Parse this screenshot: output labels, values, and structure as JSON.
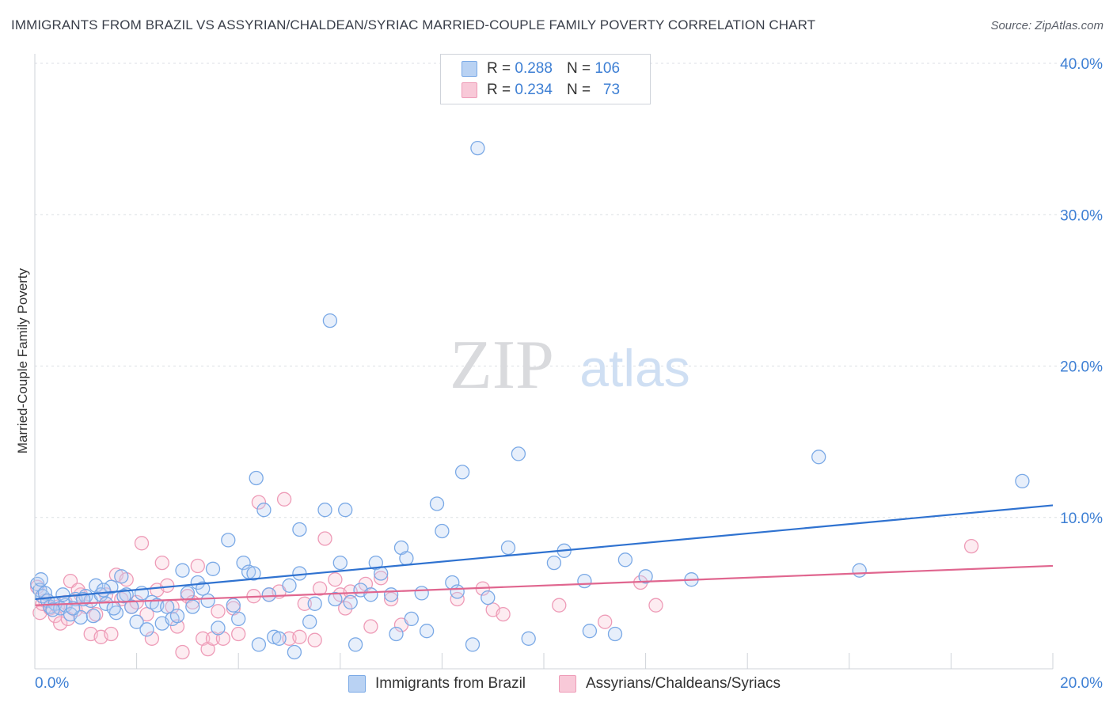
{
  "header": {
    "title": "IMMIGRANTS FROM BRAZIL VS ASSYRIAN/CHALDEAN/SYRIAC MARRIED-COUPLE FAMILY POVERTY CORRELATION CHART",
    "source": "Source: ZipAtlas.com"
  },
  "watermark": {
    "zip": "ZIP",
    "atlas": "atlas"
  },
  "legend": {
    "rows": [
      {
        "r_label": "R =",
        "r_value": "0.288",
        "n_label": "N =",
        "n_value": "106"
      },
      {
        "r_label": "R =",
        "r_value": "0.234",
        "n_label": "N =",
        "n_value": "73"
      }
    ]
  },
  "chart_data": {
    "type": "scatter",
    "title": "IMMIGRANTS FROM BRAZIL VS ASSYRIAN/CHALDEAN/SYRIAC MARRIED-COUPLE FAMILY POVERTY CORRELATION CHART",
    "xlabel": "",
    "ylabel": "Married-Couple Family Poverty",
    "xlim": [
      0,
      20
    ],
    "ylim": [
      0,
      40
    ],
    "x_tick_labels": [
      "0.0%",
      "20.0%"
    ],
    "y_tick_labels": [
      "10.0%",
      "20.0%",
      "30.0%",
      "40.0%"
    ],
    "y_ticks": [
      10,
      20,
      30,
      40
    ],
    "grid": true,
    "legend_position": "top-center",
    "series": [
      {
        "name": "Immigrants from Brazil",
        "color": "#7aa9e6",
        "fill": "#b9d2f3",
        "line_color": "#2f72d0",
        "R": 0.288,
        "N": 106,
        "trend": {
          "x": [
            0,
            20
          ],
          "y": [
            4.6,
            10.8
          ]
        },
        "points": [
          [
            0.05,
            5.6
          ],
          [
            0.1,
            5.2
          ],
          [
            0.15,
            4.8
          ],
          [
            0.2,
            5.0
          ],
          [
            0.25,
            4.5
          ],
          [
            0.3,
            4.1
          ],
          [
            0.4,
            4.3
          ],
          [
            0.5,
            4.0
          ],
          [
            0.6,
            4.2
          ],
          [
            0.7,
            3.6
          ],
          [
            0.8,
            4.6
          ],
          [
            0.9,
            3.4
          ],
          [
            1.0,
            4.8
          ],
          [
            1.1,
            4.5
          ],
          [
            1.2,
            5.5
          ],
          [
            1.3,
            4.9
          ],
          [
            1.4,
            4.3
          ],
          [
            1.5,
            5.4
          ],
          [
            1.6,
            3.7
          ],
          [
            1.7,
            6.1
          ],
          [
            1.8,
            4.9
          ],
          [
            1.9,
            4.1
          ],
          [
            2.0,
            3.1
          ],
          [
            2.1,
            5.0
          ],
          [
            2.2,
            2.6
          ],
          [
            2.3,
            4.4
          ],
          [
            2.4,
            4.2
          ],
          [
            2.5,
            3.0
          ],
          [
            2.6,
            4.1
          ],
          [
            2.7,
            3.3
          ],
          [
            2.8,
            3.5
          ],
          [
            2.9,
            6.5
          ],
          [
            3.0,
            5.0
          ],
          [
            3.1,
            4.1
          ],
          [
            3.2,
            5.7
          ],
          [
            3.3,
            5.3
          ],
          [
            3.4,
            4.5
          ],
          [
            3.5,
            6.6
          ],
          [
            3.6,
            2.7
          ],
          [
            3.8,
            8.5
          ],
          [
            3.9,
            4.2
          ],
          [
            4.0,
            3.3
          ],
          [
            4.1,
            7.0
          ],
          [
            4.2,
            6.4
          ],
          [
            4.3,
            6.3
          ],
          [
            4.35,
            12.6
          ],
          [
            4.4,
            1.6
          ],
          [
            4.5,
            10.5
          ],
          [
            4.6,
            4.9
          ],
          [
            4.7,
            2.1
          ],
          [
            4.8,
            2.0
          ],
          [
            5.0,
            5.5
          ],
          [
            5.1,
            1.1
          ],
          [
            5.2,
            6.3
          ],
          [
            5.2,
            9.2
          ],
          [
            5.4,
            3.1
          ],
          [
            5.5,
            4.3
          ],
          [
            5.7,
            10.5
          ],
          [
            5.8,
            23.0
          ],
          [
            5.9,
            4.6
          ],
          [
            6.0,
            7.0
          ],
          [
            6.1,
            10.5
          ],
          [
            6.2,
            4.4
          ],
          [
            6.3,
            1.6
          ],
          [
            6.4,
            5.2
          ],
          [
            6.6,
            4.9
          ],
          [
            6.7,
            7.0
          ],
          [
            6.8,
            6.3
          ],
          [
            7.0,
            4.9
          ],
          [
            7.1,
            2.3
          ],
          [
            7.2,
            8.0
          ],
          [
            7.3,
            7.3
          ],
          [
            7.4,
            3.3
          ],
          [
            7.6,
            5.0
          ],
          [
            7.7,
            2.5
          ],
          [
            7.9,
            10.9
          ],
          [
            8.0,
            9.1
          ],
          [
            8.2,
            5.7
          ],
          [
            8.3,
            5.1
          ],
          [
            8.4,
            13.0
          ],
          [
            8.6,
            1.6
          ],
          [
            8.7,
            34.4
          ],
          [
            8.9,
            4.7
          ],
          [
            9.3,
            8.0
          ],
          [
            9.5,
            14.2
          ],
          [
            9.7,
            2.0
          ],
          [
            10.2,
            7.0
          ],
          [
            10.4,
            7.8
          ],
          [
            10.8,
            5.8
          ],
          [
            10.9,
            2.5
          ],
          [
            11.4,
            2.3
          ],
          [
            11.6,
            7.2
          ],
          [
            12.0,
            6.1
          ],
          [
            12.9,
            5.9
          ],
          [
            15.4,
            14.0
          ],
          [
            16.2,
            6.5
          ],
          [
            19.4,
            12.4
          ],
          [
            0.12,
            5.9
          ],
          [
            0.35,
            3.9
          ],
          [
            0.55,
            4.9
          ],
          [
            0.75,
            4.0
          ],
          [
            0.95,
            4.6
          ],
          [
            1.15,
            3.5
          ],
          [
            1.35,
            5.2
          ],
          [
            1.55,
            4.0
          ],
          [
            1.75,
            4.8
          ]
        ]
      },
      {
        "name": "Assyrians/Chaldeans/Syriacs",
        "color": "#ee9bb7",
        "fill": "#f8c9d8",
        "line_color": "#e0668f",
        "R": 0.234,
        "N": 73,
        "trend": {
          "x": [
            0,
            20
          ],
          "y": [
            4.2,
            6.8
          ]
        },
        "points": [
          [
            0.05,
            5.4
          ],
          [
            0.1,
            3.7
          ],
          [
            0.2,
            4.5
          ],
          [
            0.3,
            4.0
          ],
          [
            0.4,
            3.5
          ],
          [
            0.5,
            3.0
          ],
          [
            0.6,
            4.4
          ],
          [
            0.7,
            5.8
          ],
          [
            0.8,
            3.9
          ],
          [
            0.9,
            4.9
          ],
          [
            1.0,
            4.1
          ],
          [
            1.1,
            2.3
          ],
          [
            1.2,
            3.6
          ],
          [
            1.3,
            2.1
          ],
          [
            1.4,
            4.9
          ],
          [
            1.5,
            2.3
          ],
          [
            1.6,
            6.2
          ],
          [
            1.7,
            4.6
          ],
          [
            1.8,
            5.9
          ],
          [
            1.9,
            4.1
          ],
          [
            2.0,
            4.4
          ],
          [
            2.1,
            8.3
          ],
          [
            2.2,
            3.6
          ],
          [
            2.3,
            2.0
          ],
          [
            2.4,
            5.2
          ],
          [
            2.5,
            7.0
          ],
          [
            2.6,
            5.5
          ],
          [
            2.7,
            4.1
          ],
          [
            2.8,
            2.8
          ],
          [
            2.9,
            1.1
          ],
          [
            3.0,
            4.8
          ],
          [
            3.1,
            4.4
          ],
          [
            3.2,
            6.8
          ],
          [
            3.3,
            2.0
          ],
          [
            3.4,
            1.3
          ],
          [
            3.5,
            2.0
          ],
          [
            3.6,
            3.8
          ],
          [
            3.7,
            2.0
          ],
          [
            3.9,
            4.0
          ],
          [
            4.0,
            2.3
          ],
          [
            4.3,
            4.8
          ],
          [
            4.4,
            11.0
          ],
          [
            4.6,
            4.9
          ],
          [
            4.8,
            5.1
          ],
          [
            4.9,
            11.2
          ],
          [
            5.0,
            2.0
          ],
          [
            5.2,
            2.1
          ],
          [
            5.3,
            4.3
          ],
          [
            5.5,
            1.9
          ],
          [
            5.6,
            5.3
          ],
          [
            5.7,
            8.6
          ],
          [
            5.9,
            5.9
          ],
          [
            6.0,
            4.9
          ],
          [
            6.1,
            4.0
          ],
          [
            6.2,
            5.1
          ],
          [
            6.5,
            5.6
          ],
          [
            6.6,
            2.8
          ],
          [
            6.8,
            6.0
          ],
          [
            7.0,
            4.6
          ],
          [
            7.2,
            2.9
          ],
          [
            8.3,
            4.6
          ],
          [
            8.8,
            5.3
          ],
          [
            9.0,
            3.9
          ],
          [
            9.2,
            3.6
          ],
          [
            10.3,
            4.2
          ],
          [
            11.2,
            3.1
          ],
          [
            11.9,
            5.7
          ],
          [
            12.2,
            4.2
          ],
          [
            18.4,
            8.1
          ],
          [
            0.15,
            4.3
          ],
          [
            0.45,
            4.1
          ],
          [
            0.65,
            3.3
          ],
          [
            0.85,
            5.2
          ]
        ]
      }
    ]
  },
  "bottom_legend": [
    {
      "label": "Immigrants from Brazil"
    },
    {
      "label": "Assyrians/Chaldeans/Syriacs"
    }
  ]
}
